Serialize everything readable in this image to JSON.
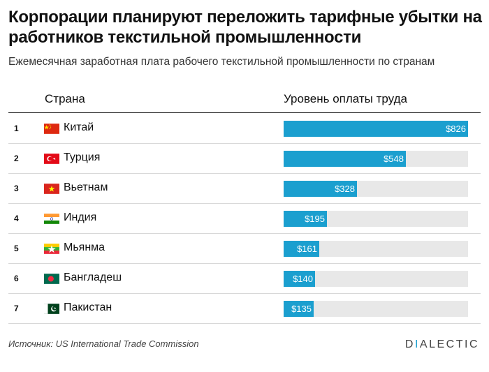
{
  "title": "Корпорации планируют переложить тарифные убытки на работников текстильной промышленности",
  "subtitle": "Ежемесячная заработная плата рабочего текстильной промышленности по странам",
  "columns": {
    "country": "Страна",
    "value": "Уровень оплаты труда"
  },
  "source": "Источник: US International Trade Commission",
  "brand": {
    "first": "D",
    "accent": "I",
    "rest": "ALECTIC"
  },
  "colors": {
    "bar": "#1b9fcf",
    "track": "#e8e8e8"
  },
  "chart_data": {
    "type": "bar",
    "orientation": "horizontal",
    "title": "Корпорации планируют переложить тарифные убытки на работников текстильной промышленности",
    "subtitle": "Ежемесячная заработная плата рабочего текстильной промышленности по странам",
    "xlim": [
      0,
      826
    ],
    "grid": false,
    "rows": [
      {
        "rank": "1",
        "country": "Китай",
        "flag_icon": "china-flag-icon",
        "value": 826,
        "label": "$826"
      },
      {
        "rank": "2",
        "country": "Турция",
        "flag_icon": "turkey-flag-icon",
        "value": 548,
        "label": "$548"
      },
      {
        "rank": "3",
        "country": "Вьетнам",
        "flag_icon": "vietnam-flag-icon",
        "value": 328,
        "label": "$328"
      },
      {
        "rank": "4",
        "country": "Индия",
        "flag_icon": "india-flag-icon",
        "value": 195,
        "label": "$195"
      },
      {
        "rank": "5",
        "country": "Мьянма",
        "flag_icon": "myanmar-flag-icon",
        "value": 161,
        "label": "$161"
      },
      {
        "rank": "6",
        "country": "Бангладеш",
        "flag_icon": "bangladesh-flag-icon",
        "value": 140,
        "label": "$140"
      },
      {
        "rank": "7",
        "country": "Пакистан",
        "flag_icon": "pakistan-flag-icon",
        "value": 135,
        "label": "$135"
      }
    ]
  }
}
